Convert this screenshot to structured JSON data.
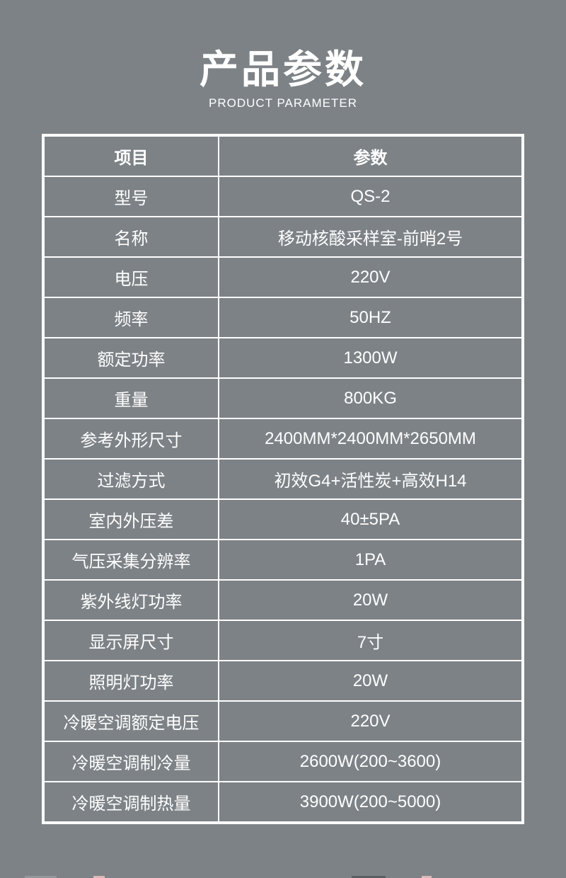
{
  "theme": {
    "background": "#7d8286",
    "text": "#ffffff",
    "border": "#ffffff"
  },
  "header": {
    "title": "产品参数",
    "subtitle": "PRODUCT PARAMETER"
  },
  "table": {
    "columns": [
      "项目",
      "参数"
    ],
    "rows": [
      {
        "label": "型号",
        "value": "QS-2"
      },
      {
        "label": "名称",
        "value": "移动核酸采样室-前哨2号"
      },
      {
        "label": "电压",
        "value": "220V"
      },
      {
        "label": "频率",
        "value": "50HZ"
      },
      {
        "label": "额定功率",
        "value": "1300W"
      },
      {
        "label": "重量",
        "value": "800KG"
      },
      {
        "label": "参考外形尺寸",
        "value": "2400MM*2400MM*2650MM"
      },
      {
        "label": "过滤方式",
        "value": "初效G4+活性炭+高效H14"
      },
      {
        "label": "室内外压差",
        "value": "40±5PA"
      },
      {
        "label": "气压采集分辨率",
        "value": "1PA"
      },
      {
        "label": "紫外线灯功率",
        "value": "20W"
      },
      {
        "label": "显示屏尺寸",
        "value": "7寸"
      },
      {
        "label": "照明灯功率",
        "value": "20W"
      },
      {
        "label": "冷暖空调额定电压",
        "value": "220V"
      },
      {
        "label": "冷暖空调制冷量",
        "value": "2600W(200~3600)"
      },
      {
        "label": "冷暖空调制热量",
        "value": "3900W(200~5000)"
      }
    ]
  }
}
